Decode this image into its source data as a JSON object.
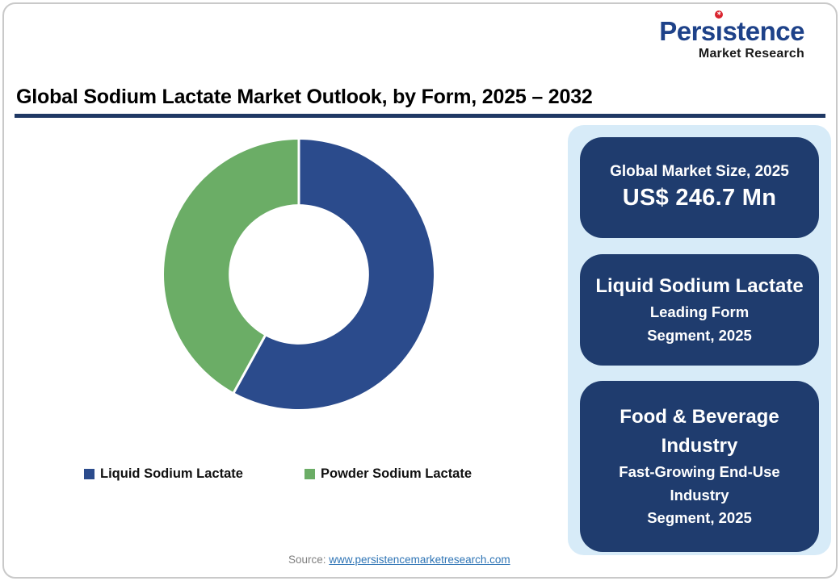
{
  "logo": {
    "brand_full": "Persistence",
    "brand_pre": "Pers",
    "brand_i": "ı",
    "brand_post": "stence",
    "subtitle": "Market Research",
    "brand_color": "#1E4289",
    "dot_color": "#D9232E"
  },
  "title": "Global Sodium Lactate Market Outlook, by Form, 2025 – 2032",
  "title_rule_color": "#1F3864",
  "chart_data": {
    "type": "donut",
    "title": "Global Sodium Lactate Market Outlook, by Form, 2025 – 2032",
    "unit": "percent share (estimated from arc angles)",
    "segments": [
      {
        "label": "Liquid Sodium Lactate",
        "value": 58,
        "color": "#2B4B8C"
      },
      {
        "label": "Powder Sodium Lactate",
        "value": 42,
        "color": "#6BAD66"
      }
    ],
    "start_angle_deg": 0,
    "direction": "clockwise",
    "inner_radius_ratio": 0.52,
    "separator_color": "#FFFFFF",
    "legend_position": "bottom"
  },
  "info_panel": {
    "panel_color": "#D7EBF8",
    "box_color": "#1F3C6E",
    "boxes": [
      {
        "label": "Global Market Size, 2025",
        "value": "US$ 246.7 Mn"
      },
      {
        "heading": "Liquid Sodium Lactate",
        "sub1": "Leading Form",
        "sub2": "Segment, 2025"
      },
      {
        "heading": "Food & Beverage Industry",
        "sub1": "Fast-Growing End-Use Industry",
        "sub2": "Segment, 2025"
      }
    ]
  },
  "source": {
    "prefix": "Source: ",
    "link_text": "www.persistencemarketresearch.com"
  }
}
